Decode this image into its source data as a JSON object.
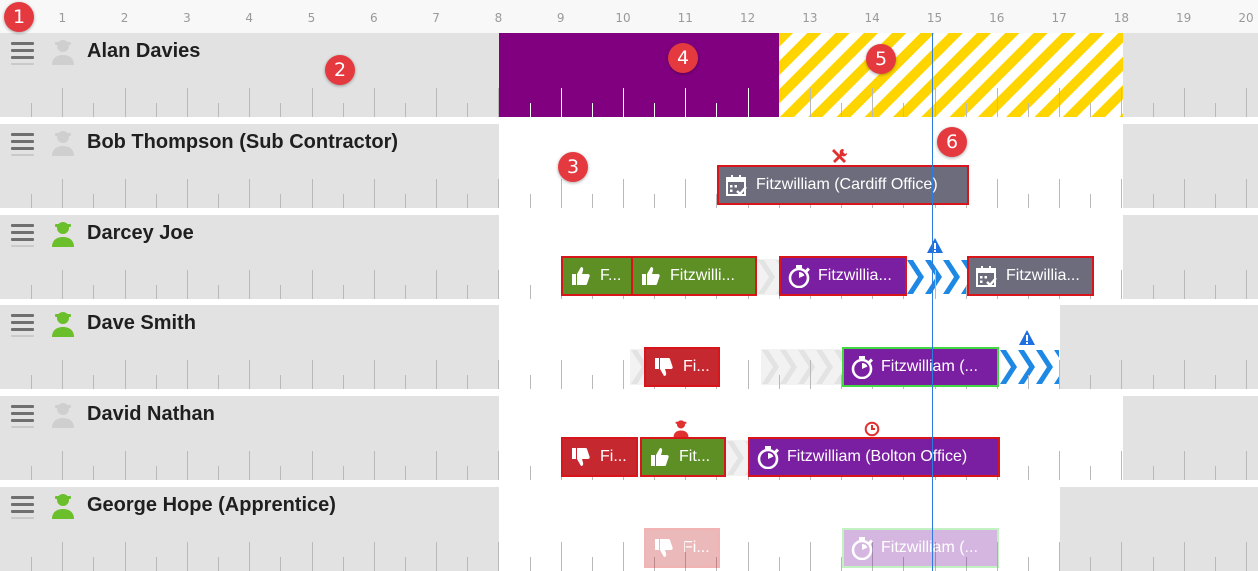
{
  "timeline": {
    "hours": [
      "1",
      "2",
      "3",
      "4",
      "5",
      "6",
      "7",
      "8",
      "9",
      "10",
      "11",
      "12",
      "13",
      "14",
      "15",
      "16",
      "17",
      "18",
      "19",
      "20"
    ]
  },
  "callouts": [
    "1",
    "2",
    "3",
    "4",
    "5",
    "6"
  ],
  "rows": [
    {
      "name": "Alan Davies",
      "avatar": "person-grey-icon",
      "jobs": []
    },
    {
      "name": "Bob Thompson (Sub Contractor)",
      "avatar": "person-grey-icon",
      "jobs": [
        {
          "label": "Fitzwilliam (Cardiff Office)",
          "color": "grey",
          "icon": "calendar-check-icon",
          "status": "warning"
        }
      ]
    },
    {
      "name": "Darcey Joe",
      "avatar": "person-green-icon",
      "jobs": [
        {
          "label": "F...",
          "color": "green",
          "icon": "thumbs-up-icon",
          "status": "warning"
        },
        {
          "label": "Fitzwilli...",
          "color": "green",
          "icon": "thumbs-up-icon",
          "status": "warning"
        },
        {
          "label": "Fitzwillia...",
          "color": "purple",
          "icon": "stopwatch-icon",
          "status": "warning"
        },
        {
          "label": "Fitzwillia...",
          "color": "grey",
          "icon": "calendar-check-icon",
          "status": "warning"
        }
      ]
    },
    {
      "name": "Dave Smith",
      "avatar": "person-green-icon",
      "jobs": [
        {
          "label": "Fi...",
          "color": "red",
          "icon": "thumbs-down-icon",
          "status": "warning"
        },
        {
          "label": "Fitzwilliam (...",
          "color": "purple",
          "icon": "stopwatch-icon",
          "status": "ok"
        }
      ]
    },
    {
      "name": "David Nathan",
      "avatar": "person-grey-icon",
      "jobs": [
        {
          "label": "Fi...",
          "color": "red",
          "icon": "thumbs-down-icon",
          "status": "warning"
        },
        {
          "label": "Fit...",
          "color": "green",
          "icon": "thumbs-up-icon",
          "status": "warning"
        },
        {
          "label": "Fitzwilliam (Bolton Office)",
          "color": "purple",
          "icon": "stopwatch-icon",
          "status": "warning"
        }
      ]
    },
    {
      "name": "George Hope (Apprentice)",
      "avatar": "person-green-icon",
      "jobs": [
        {
          "label": "Fi...",
          "color": "red",
          "icon": "thumbs-down-icon",
          "status": "faded"
        },
        {
          "label": "Fitzwilliam (...",
          "color": "purple",
          "icon": "stopwatch-icon",
          "status": "faded"
        }
      ]
    }
  ],
  "colors": {
    "unavailable": "#e2e2e2",
    "available": "#ffffff",
    "absence": "#800080",
    "hatch": "#ffd500",
    "overtime": "#1e88e5",
    "current_time": "#2d7bdc",
    "warning_border": "#d9151c",
    "ok_border": "#43d843"
  }
}
